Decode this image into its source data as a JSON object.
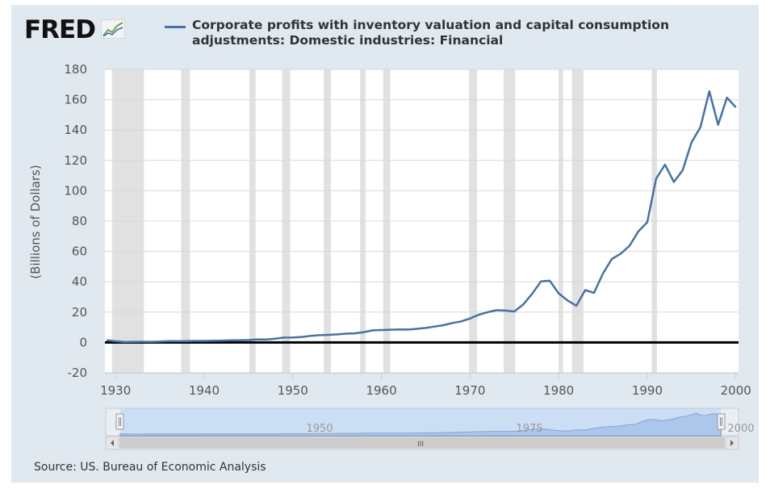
{
  "header": {
    "logo_text": "FRED",
    "logo_icon": "graph-icon",
    "legend_label": "Corporate profits with inventory valuation and capital consumption adjustments: Domestic industries: Financial"
  },
  "footer": {
    "source": "Source: US. Bureau of Economic Analysis"
  },
  "navigator": {
    "tick_labels": [
      "1950",
      "1975",
      "2000"
    ],
    "scroll_grip": "III"
  },
  "colors": {
    "background": "#e1e9f0",
    "plot": "#ffffff",
    "series": "#4572a7",
    "recession": "#e1e1e1",
    "grid": "#d8d8d8",
    "zero_line": "#000000",
    "navigator_fill": "#b4cff0"
  },
  "chart_data": {
    "type": "line",
    "title": "",
    "xlabel": "",
    "ylabel": "(Billions of Dollars)",
    "xlim": [
      1928.8,
      2000.3
    ],
    "ylim": [
      -20,
      180
    ],
    "grid": true,
    "legend_position": "top",
    "x_ticks": [
      1930,
      1940,
      1950,
      1960,
      1970,
      1980,
      1990,
      2000
    ],
    "y_ticks": [
      -20,
      0,
      20,
      40,
      60,
      80,
      100,
      120,
      140,
      160,
      180
    ],
    "recessions": [
      [
        1929.6,
        1933.2
      ],
      [
        1937.4,
        1938.4
      ],
      [
        1945.1,
        1945.8
      ],
      [
        1948.8,
        1949.7
      ],
      [
        1953.5,
        1954.3
      ],
      [
        1957.6,
        1958.2
      ],
      [
        1960.2,
        1961.0
      ],
      [
        1969.9,
        1970.8
      ],
      [
        1973.8,
        1975.1
      ],
      [
        1980.0,
        1980.5
      ],
      [
        1981.5,
        1982.8
      ],
      [
        1990.5,
        1991.1
      ]
    ],
    "series": [
      {
        "name": "Corporate profits with inventory valuation and capital consumption adjustments: Domestic industries: Financial",
        "x": [
          1929,
          1930,
          1931,
          1932,
          1933,
          1934,
          1935,
          1936,
          1937,
          1938,
          1939,
          1940,
          1941,
          1942,
          1943,
          1944,
          1945,
          1946,
          1947,
          1948,
          1949,
          1950,
          1951,
          1952,
          1953,
          1954,
          1955,
          1956,
          1957,
          1958,
          1959,
          1960,
          1961,
          1962,
          1963,
          1964,
          1965,
          1966,
          1967,
          1968,
          1969,
          1970,
          1971,
          1972,
          1973,
          1974,
          1975,
          1976,
          1977,
          1978,
          1979,
          1980,
          1981,
          1982,
          1983,
          1984,
          1985,
          1986,
          1987,
          1988,
          1989,
          1990,
          1991,
          1992,
          1993,
          1994,
          1995,
          1996,
          1997,
          1998,
          1999,
          2000
        ],
        "values": [
          1.5,
          0.8,
          0.3,
          0.4,
          0.5,
          0.4,
          0.6,
          0.9,
          0.9,
          0.9,
          1.0,
          1.0,
          1.1,
          1.2,
          1.4,
          1.5,
          1.6,
          2.0,
          1.9,
          2.5,
          3.2,
          3.3,
          3.6,
          4.3,
          4.8,
          5.0,
          5.3,
          5.8,
          6.0,
          6.8,
          8.0,
          8.2,
          8.4,
          8.6,
          8.5,
          9.0,
          9.6,
          10.5,
          11.4,
          12.8,
          13.9,
          15.8,
          18.3,
          20.0,
          21.3,
          21.0,
          20.4,
          25.0,
          32.0,
          40.2,
          40.7,
          32.4,
          27.7,
          24.2,
          34.5,
          32.7,
          45.4,
          55.0,
          58.5,
          63.8,
          73.2,
          79.2,
          107.9,
          117.2,
          105.8,
          113.5,
          131.9,
          141.9,
          165.6,
          143.5,
          161.4,
          155.0
        ]
      }
    ]
  }
}
